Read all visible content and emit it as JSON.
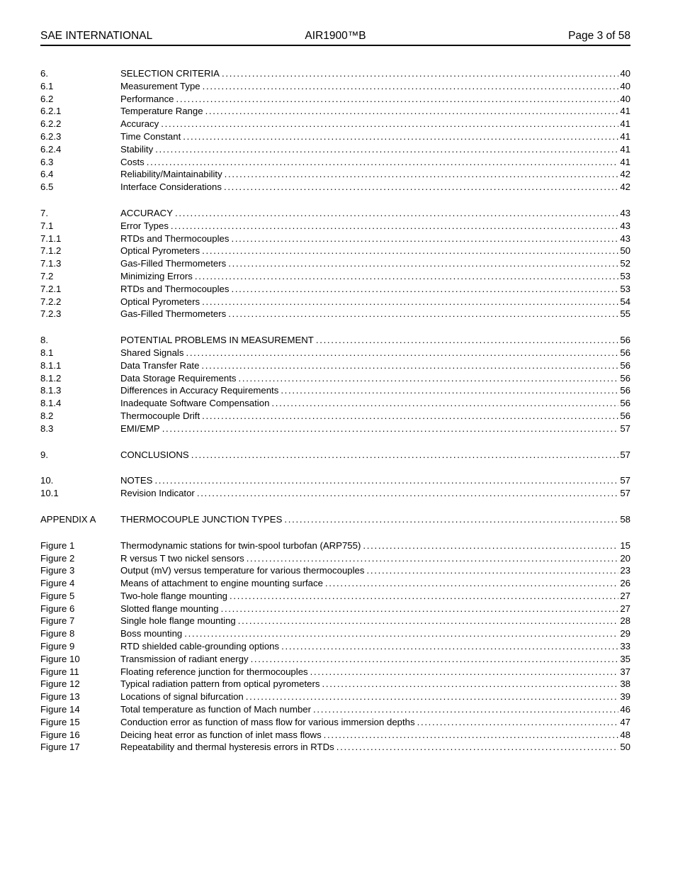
{
  "header": {
    "left": "SAE INTERNATIONAL",
    "center": "AIR1900™B",
    "right": "Page 3 of 58"
  },
  "toc": {
    "groups": [
      {
        "rows": [
          {
            "num": "6.",
            "title": "SELECTION CRITERIA",
            "page": "40"
          },
          {
            "num": "6.1",
            "title": "Measurement Type",
            "page": "40"
          },
          {
            "num": "6.2",
            "title": "Performance",
            "page": "40"
          },
          {
            "num": "6.2.1",
            "title": "Temperature Range",
            "page": "41"
          },
          {
            "num": "6.2.2",
            "title": "Accuracy",
            "page": "41"
          },
          {
            "num": "6.2.3",
            "title": "Time Constant",
            "page": "41"
          },
          {
            "num": "6.2.4",
            "title": "Stability",
            "page": "41"
          },
          {
            "num": "6.3",
            "title": "Costs",
            "page": "41"
          },
          {
            "num": "6.4",
            "title": "Reliability/Maintainability",
            "page": "42"
          },
          {
            "num": "6.5",
            "title": "Interface Considerations",
            "page": "42"
          }
        ]
      },
      {
        "rows": [
          {
            "num": "7.",
            "title": "ACCURACY",
            "page": "43"
          },
          {
            "num": "7.1",
            "title": "Error Types",
            "page": "43"
          },
          {
            "num": "7.1.1",
            "title": "RTDs and Thermocouples",
            "page": "43"
          },
          {
            "num": "7.1.2",
            "title": "Optical Pyrometers",
            "page": "50"
          },
          {
            "num": "7.1.3",
            "title": "Gas-Filled Thermometers",
            "page": "52"
          },
          {
            "num": "7.2",
            "title": "Minimizing Errors",
            "page": "53"
          },
          {
            "num": "7.2.1",
            "title": "RTDs and Thermocouples",
            "page": "53"
          },
          {
            "num": "7.2.2",
            "title": "Optical Pyrometers",
            "page": "54"
          },
          {
            "num": "7.2.3",
            "title": "Gas-Filled Thermometers",
            "page": "55"
          }
        ]
      },
      {
        "rows": [
          {
            "num": "8.",
            "title": "POTENTIAL PROBLEMS IN MEASUREMENT",
            "page": "56"
          },
          {
            "num": "8.1",
            "title": "Shared Signals",
            "page": "56"
          },
          {
            "num": "8.1.1",
            "title": "Data Transfer Rate",
            "page": "56"
          },
          {
            "num": "8.1.2",
            "title": "Data Storage Requirements",
            "page": "56"
          },
          {
            "num": "8.1.3",
            "title": "Differences in Accuracy Requirements",
            "page": "56"
          },
          {
            "num": "8.1.4",
            "title": "Inadequate Software Compensation",
            "page": "56"
          },
          {
            "num": "8.2",
            "title": "Thermocouple Drift",
            "page": "56"
          },
          {
            "num": "8.3",
            "title": "EMI/EMP",
            "page": "57"
          }
        ]
      },
      {
        "rows": [
          {
            "num": "9.",
            "title": "CONCLUSIONS",
            "page": "57"
          }
        ]
      },
      {
        "rows": [
          {
            "num": "10.",
            "title": "NOTES",
            "page": "57"
          },
          {
            "num": "10.1",
            "title": "Revision Indicator",
            "page": "57"
          }
        ]
      },
      {
        "rows": [
          {
            "num": "APPENDIX A",
            "title": "THERMOCOUPLE JUNCTION TYPES",
            "page": "58"
          }
        ]
      },
      {
        "rows": [
          {
            "num": "Figure 1",
            "title": "Thermodynamic stations for twin-spool turbofan (ARP755)",
            "page": "15"
          },
          {
            "num": "Figure 2",
            "title": "R versus T two nickel sensors",
            "page": "20"
          },
          {
            "num": "Figure 3",
            "title": "Output (mV) versus temperature for various thermocouples",
            "page": "23"
          },
          {
            "num": "Figure 4",
            "title": "Means of attachment to engine mounting surface",
            "page": "26"
          },
          {
            "num": "Figure 5",
            "title": "Two-hole flange mounting",
            "page": "27"
          },
          {
            "num": "Figure 6",
            "title": "Slotted flange mounting",
            "page": "27"
          },
          {
            "num": "Figure 7",
            "title": "Single hole flange mounting",
            "page": "28"
          },
          {
            "num": "Figure 8",
            "title": "Boss mounting",
            "page": "29"
          },
          {
            "num": "Figure 9",
            "title": "RTD shielded cable-grounding options",
            "page": "33"
          },
          {
            "num": "Figure 10",
            "title": "Transmission of radiant energy",
            "page": "35"
          },
          {
            "num": "Figure 11",
            "title": "Floating reference junction for thermocouples",
            "page": "37"
          },
          {
            "num": "Figure 12",
            "title": "Typical radiation pattern from optical pyrometers",
            "page": "38"
          },
          {
            "num": "Figure 13",
            "title": "Locations of signal bifurcation",
            "page": "39"
          },
          {
            "num": "Figure 14",
            "title": "Total temperature as function of Mach number",
            "page": "46"
          },
          {
            "num": "Figure 15",
            "title": "Conduction error as function of mass flow for various immersion depths",
            "page": "47"
          },
          {
            "num": "Figure 16",
            "title": "Deicing heat error as function of inlet mass flows",
            "page": "48"
          },
          {
            "num": "Figure 17",
            "title": "Repeatability and thermal hysteresis errors in RTDs",
            "page": "50"
          }
        ]
      }
    ]
  }
}
